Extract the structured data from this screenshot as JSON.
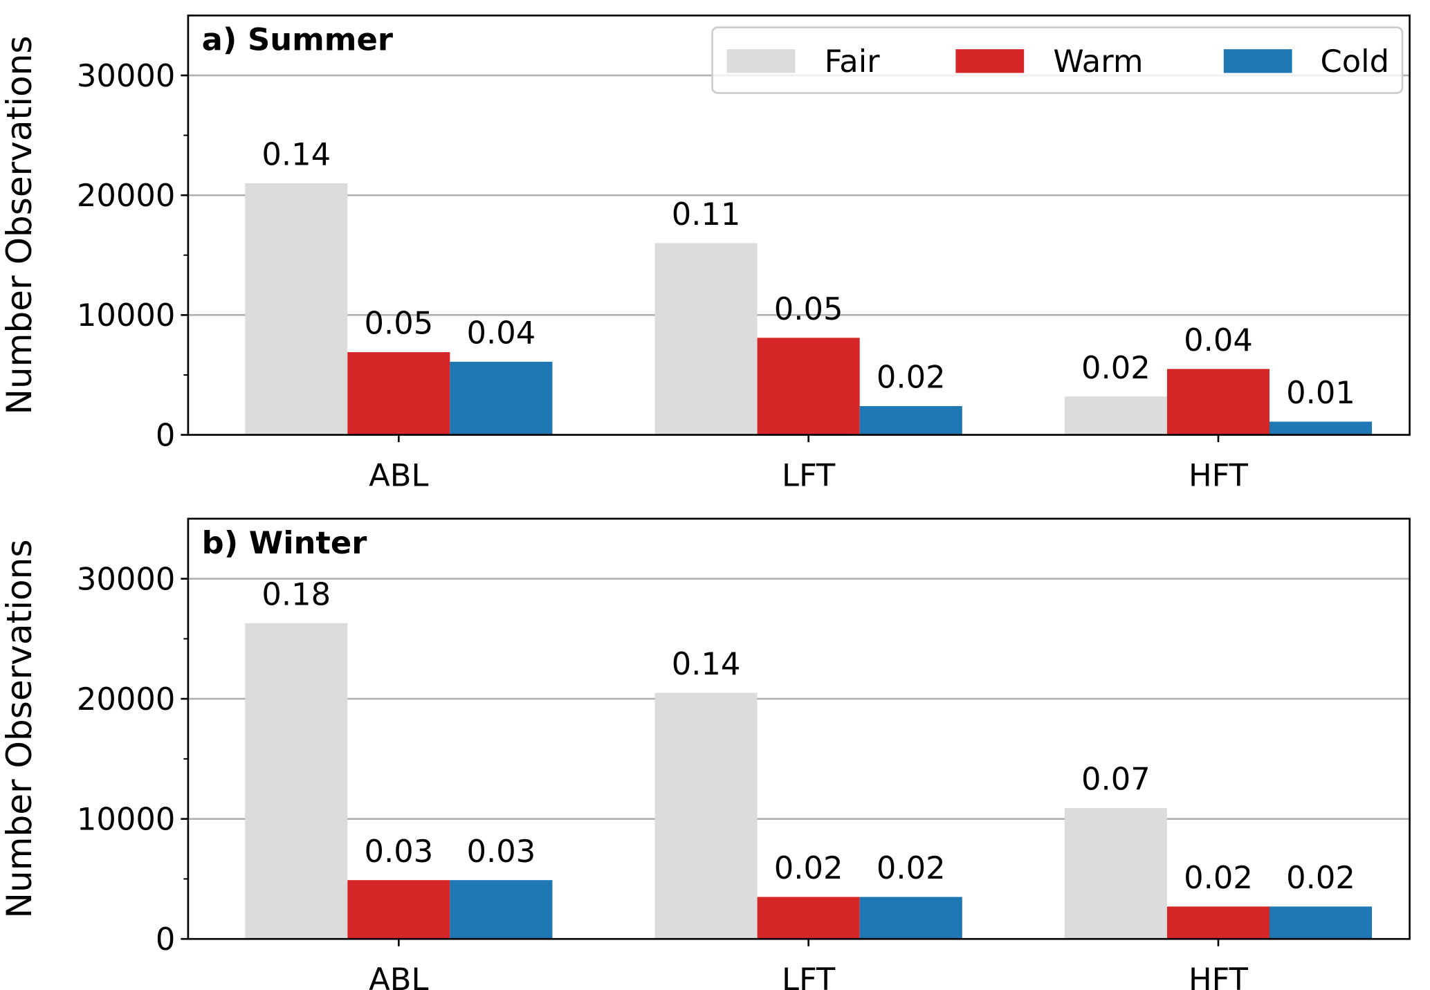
{
  "chart_data": [
    {
      "type": "bar",
      "title": "a) Summer",
      "ylabel": "Number Observations",
      "categories": [
        "ABL",
        "LFT",
        "HFT"
      ],
      "series": [
        {
          "name": "Fair",
          "color": "#dcdcdc",
          "values": [
            21000,
            16000,
            3200
          ],
          "fraction_labels": [
            0.14,
            0.11,
            0.02
          ]
        },
        {
          "name": "Warm",
          "color": "#d62728",
          "values": [
            6900,
            8100,
            5500
          ],
          "fraction_labels": [
            0.05,
            0.05,
            0.04
          ]
        },
        {
          "name": "Cold",
          "color": "#1f77b4",
          "values": [
            6100,
            2400,
            1100
          ],
          "fraction_labels": [
            0.04,
            0.02,
            0.01
          ]
        }
      ],
      "ylim": [
        0,
        35000
      ],
      "yticks": [
        0,
        10000,
        20000,
        30000
      ],
      "minor_yticks": [
        5000,
        15000,
        25000
      ],
      "grid": true,
      "legend": "upper right"
    },
    {
      "type": "bar",
      "title": "b) Winter",
      "ylabel": "Number Observations",
      "categories": [
        "ABL",
        "LFT",
        "HFT"
      ],
      "series": [
        {
          "name": "Fair",
          "color": "#dcdcdc",
          "values": [
            26300,
            20500,
            10900
          ],
          "fraction_labels": [
            0.18,
            0.14,
            0.07
          ]
        },
        {
          "name": "Warm",
          "color": "#d62728",
          "values": [
            4900,
            3500,
            2700
          ],
          "fraction_labels": [
            0.03,
            0.02,
            0.02
          ]
        },
        {
          "name": "Cold",
          "color": "#1f77b4",
          "values": [
            4900,
            3500,
            2700
          ],
          "fraction_labels": [
            0.03,
            0.02,
            0.02
          ]
        }
      ],
      "ylim": [
        0,
        35000
      ],
      "yticks": [
        0,
        10000,
        20000,
        30000
      ],
      "minor_yticks": [
        5000,
        15000,
        25000
      ],
      "grid": true
    }
  ]
}
